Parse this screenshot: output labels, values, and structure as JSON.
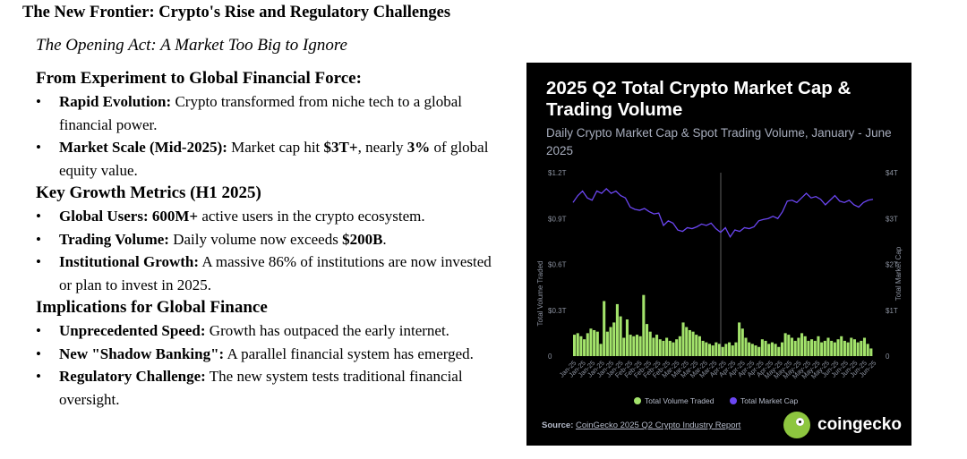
{
  "title": "The New Frontier: Crypto's Rise and Regulatory Challenges",
  "subtitle": "The Opening Act: A Market Too Big to Ignore",
  "sections": [
    {
      "heading": "From Experiment to Global Financial Force:",
      "bullets": [
        {
          "bold": "Rapid Evolution:",
          "text": " Crypto transformed from niche tech to a global financial power."
        },
        {
          "bold": "Market Scale (Mid-2025):",
          "text": " Market cap hit ",
          "bold2": "$3T+",
          "text2": ", nearly ",
          "bold3": "3%",
          "text3": " of global equity value."
        }
      ]
    },
    {
      "heading": "Key Growth Metrics (H1 2025)",
      "bullets": [
        {
          "bold": "Global Users:",
          "text": " ",
          "bold2": "600M+",
          "text2": " active users in the crypto ecosystem."
        },
        {
          "bold": "Trading Volume:",
          "text": " Daily volume now exceeds ",
          "bold2": "$200B",
          "text2": "."
        },
        {
          "bold": "Institutional Growth:",
          "text": " A massive 86% of institutions are now invested or plan to invest in 2025."
        }
      ]
    },
    {
      "heading": "Implications for Global Finance",
      "bullets": [
        {
          "bold": "Unprecedented Speed:",
          "text": " Growth has outpaced the early internet."
        },
        {
          "bold": "New \"Shadow Banking\":",
          "text": " A parallel financial system has emerged."
        },
        {
          "bold": "Regulatory Challenge:",
          "text": " The new system tests traditional financial oversight."
        }
      ]
    }
  ],
  "bullet_char": "•",
  "chart_data": {
    "type": "bar+line",
    "title": "2025 Q2 Total Crypto Market Cap & Trading Volume",
    "subtitle": "Daily Crypto Market Cap & Spot Trading Volume, January - June 2025",
    "left_axis": {
      "label": "Total Volume Traded",
      "ticks": [
        "$1.2T",
        "$0.9T",
        "$0.6T",
        "$0.3T",
        "0"
      ],
      "range": [
        0,
        1.2
      ]
    },
    "right_axis": {
      "label": "Total Market Cap",
      "ticks": [
        "$4T",
        "$3T",
        "$2T",
        "$1T",
        "0"
      ],
      "range": [
        0,
        4
      ]
    },
    "x_ticks": [
      "Jan-25",
      "Jan-25",
      "Jan-25",
      "Jan-25",
      "Jan-25",
      "Jan-25",
      "Feb-25",
      "Feb-25",
      "Feb-25",
      "Feb-25",
      "Feb-25",
      "Mar-25",
      "Mar-25",
      "Mar-25",
      "Mar-25",
      "Mar-25",
      "Apr-25",
      "Apr-25",
      "Apr-25",
      "Apr-25",
      "Apr-25",
      "Apr-25",
      "May-25",
      "May-25",
      "May-25",
      "May-25",
      "May-25",
      "May-25",
      "Jun-25",
      "Jun-25",
      "Jun-25",
      "Jun-25",
      "Jun-25"
    ],
    "series": [
      {
        "name": "Total Volume Traded",
        "type": "bar",
        "color": "#a3e36b",
        "values": [
          0.14,
          0.15,
          0.13,
          0.11,
          0.15,
          0.18,
          0.17,
          0.16,
          0.08,
          0.36,
          0.16,
          0.19,
          0.22,
          0.34,
          0.26,
          0.12,
          0.24,
          0.14,
          0.13,
          0.14,
          0.13,
          0.4,
          0.21,
          0.16,
          0.12,
          0.14,
          0.11,
          0.1,
          0.12,
          0.1,
          0.09,
          0.11,
          0.13,
          0.22,
          0.19,
          0.17,
          0.16,
          0.14,
          0.13,
          0.1,
          0.09,
          0.08,
          0.07,
          0.09,
          0.08,
          0.06,
          0.08,
          0.09,
          0.07,
          0.09,
          0.22,
          0.18,
          0.12,
          0.09,
          0.08,
          0.07,
          0.06,
          0.11,
          0.1,
          0.08,
          0.09,
          0.08,
          0.06,
          0.09,
          0.15,
          0.14,
          0.12,
          0.1,
          0.12,
          0.15,
          0.13,
          0.1,
          0.11,
          0.1,
          0.13,
          0.09,
          0.1,
          0.12,
          0.1,
          0.09,
          0.11,
          0.13,
          0.1,
          0.09,
          0.12,
          0.11,
          0.09,
          0.1,
          0.12,
          0.08,
          0.05
        ]
      },
      {
        "name": "Total Market Cap",
        "type": "line",
        "color": "#6b46f2",
        "values": [
          3.35,
          3.5,
          3.6,
          3.45,
          3.4,
          3.6,
          3.55,
          3.65,
          3.55,
          3.6,
          3.5,
          3.45,
          3.25,
          3.2,
          3.18,
          3.22,
          3.15,
          3.1,
          3.12,
          2.85,
          2.95,
          2.9,
          2.75,
          2.72,
          2.8,
          2.78,
          2.82,
          2.88,
          2.85,
          2.9,
          2.78,
          2.7,
          2.8,
          2.6,
          2.75,
          2.72,
          2.8,
          2.78,
          2.82,
          2.95,
          2.98,
          3.0,
          3.05,
          3.0,
          3.15,
          3.38,
          3.4,
          3.35,
          3.45,
          3.55,
          3.45,
          3.48,
          3.42,
          3.3,
          3.4,
          3.5,
          3.38,
          3.35,
          3.4,
          3.3,
          3.25,
          3.35,
          3.4,
          3.42
        ]
      }
    ],
    "legend": [
      "Total Volume Traded",
      "Total Market Cap"
    ],
    "legend_position": "bottom",
    "annotation": "vertical marker at start of Q2 (Apr-25)",
    "source_label": "Source:",
    "source_link": "CoinGecko 2025 Q2 Crypto Industry Report",
    "brand": "coingecko"
  }
}
